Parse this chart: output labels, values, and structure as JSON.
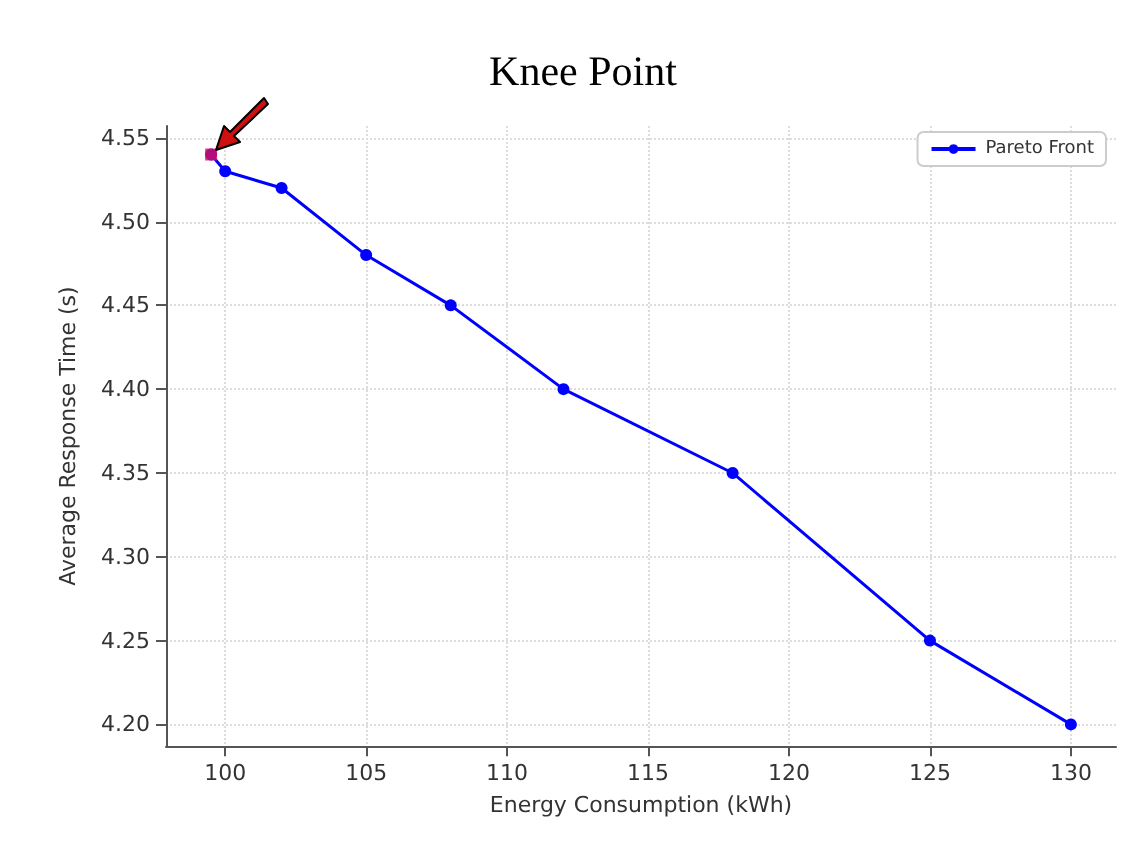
{
  "chart_data": {
    "type": "line",
    "title": "Knee Point",
    "xlabel": "Energy Consumption (kWh)",
    "ylabel": "Average Response Time (s)",
    "series": [
      {
        "name": "Pareto Front",
        "color": "#0000ff",
        "x": [
          99.5,
          100,
          102,
          105,
          108,
          112,
          118,
          125,
          130
        ],
        "values": [
          4.54,
          4.53,
          4.52,
          4.48,
          4.45,
          4.4,
          4.35,
          4.25,
          4.2
        ]
      },
      {
        "type": "scatter",
        "marker": "square",
        "color": "#e0105a",
        "x": [
          99.5
        ],
        "values": [
          4.54
        ]
      }
    ],
    "xlim": [
      97.9,
      131.6
    ],
    "xticks": [
      100,
      105,
      110,
      115,
      120,
      125,
      130
    ],
    "ylim": [
      4.187,
      4.557
    ],
    "yticks": [
      {
        "value": 4.2,
        "label": "4.20"
      },
      4.25,
      {
        "value": 4.3,
        "label": "4.30"
      },
      4.35,
      {
        "value": 4.4,
        "label": "4.40"
      },
      4.45,
      {
        "value": 4.5,
        "label": "4.50"
      },
      4.55
    ],
    "grid": true,
    "legend": "top right",
    "marker": "circle",
    "line_style": "solid"
  }
}
